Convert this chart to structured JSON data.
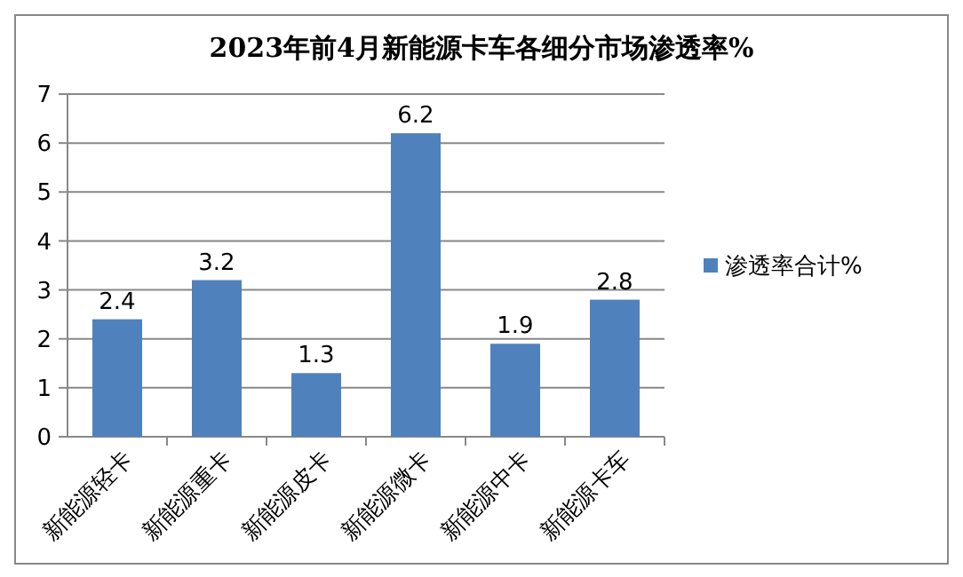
{
  "chart_data": {
    "type": "bar",
    "title": "2023年前4月新能源卡车各细分市场渗透率%",
    "categories": [
      "新能源轻卡",
      "新能源重卡",
      "新能源皮卡",
      "新能源微卡",
      "新能源中卡",
      "新能源卡车"
    ],
    "series": [
      {
        "name": "渗透率合计%",
        "color": "#4f81bd",
        "values": [
          2.4,
          3.2,
          1.3,
          6.2,
          1.9,
          2.8
        ]
      }
    ],
    "ylim": [
      0,
      7
    ],
    "yticks": [
      0,
      1,
      2,
      3,
      4,
      5,
      6,
      7
    ],
    "grid": "y",
    "legend": "right",
    "data_labels": true
  }
}
